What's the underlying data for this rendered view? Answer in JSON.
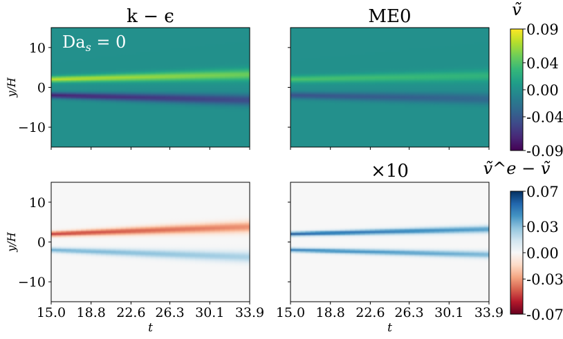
{
  "chart_data": [
    {
      "type": "heatmap",
      "id": "top-left",
      "title": "k − ϵ",
      "annotation": "Da",
      "annotation_sub": "s",
      "annotation_rest": " = 0",
      "ylabel": "y/H",
      "xlabel": "",
      "xlim": [
        15.0,
        33.9
      ],
      "ylim": [
        -15,
        15
      ],
      "yticks": [
        "10",
        "0",
        "−10"
      ],
      "ytick_values": [
        10,
        0,
        -10
      ],
      "colormap": "viridis",
      "field": {
        "centers": [
          2,
          -2
        ],
        "amplitudes": [
          0.075,
          -0.075
        ],
        "width_start": 0.7,
        "width_end": 1.4,
        "drift": 1.2
      }
    },
    {
      "type": "heatmap",
      "id": "top-right",
      "title": "ME0",
      "xlim": [
        15.0,
        33.9
      ],
      "ylim": [
        -15,
        15
      ],
      "colormap": "viridis",
      "field": {
        "centers": [
          2,
          -2
        ],
        "amplitudes": [
          0.04,
          -0.045
        ],
        "width_start": 0.8,
        "width_end": 1.4,
        "drift": 0.9
      }
    },
    {
      "type": "heatmap",
      "id": "bottom-left",
      "title": "",
      "ylabel": "y/H",
      "xlabel": "t",
      "xlim": [
        15.0,
        33.9
      ],
      "ylim": [
        -15,
        15
      ],
      "xticks": [
        "15.0",
        "18.8",
        "22.6",
        "26.3",
        "30.1",
        "33.9"
      ],
      "xtick_values": [
        15.0,
        18.8,
        22.6,
        26.3,
        30.1,
        33.9
      ],
      "yticks": [
        "10",
        "0",
        "−10"
      ],
      "ytick_values": [
        10,
        0,
        -10
      ],
      "colormap": "RdBu",
      "field": {
        "centers": [
          2,
          -2
        ],
        "amplitudes": [
          -0.05,
          0.035
        ],
        "width_start": 0.6,
        "width_end": 1.4,
        "drift": 1.8
      }
    },
    {
      "type": "heatmap",
      "id": "bottom-right",
      "title": "×10",
      "xlabel": "t",
      "xlim": [
        15.0,
        33.9
      ],
      "ylim": [
        -15,
        15
      ],
      "xticks": [
        "15.0",
        "18.8",
        "22.6",
        "26.3",
        "30.1",
        "33.9"
      ],
      "xtick_values": [
        15.0,
        18.8,
        22.6,
        26.3,
        30.1,
        33.9
      ],
      "colormap": "RdBu",
      "field": {
        "centers": [
          2,
          -2
        ],
        "amplitudes": [
          0.06,
          0.05
        ],
        "width_start": 0.5,
        "width_end": 0.9,
        "drift": 1.2
      }
    }
  ],
  "colorbars": [
    {
      "label": "ṽ",
      "colormap": "viridis",
      "min": -0.09,
      "max": 0.09,
      "ticks": [
        "0.09",
        "0.04",
        "0.00",
        "-0.04",
        "-0.09"
      ],
      "tick_values": [
        0.09,
        0.04,
        0.0,
        -0.04,
        -0.09
      ]
    },
    {
      "label": "ṽ^e − ṽ",
      "colormap": "RdBu",
      "min": -0.07,
      "max": 0.07,
      "ticks": [
        "0.07",
        "0.03",
        "0.00",
        "-0.03",
        "-0.07"
      ],
      "tick_values": [
        0.07,
        0.03,
        0.0,
        -0.03,
        -0.07
      ]
    }
  ],
  "colors": {
    "axis": "#000000",
    "text": "#000000"
  }
}
